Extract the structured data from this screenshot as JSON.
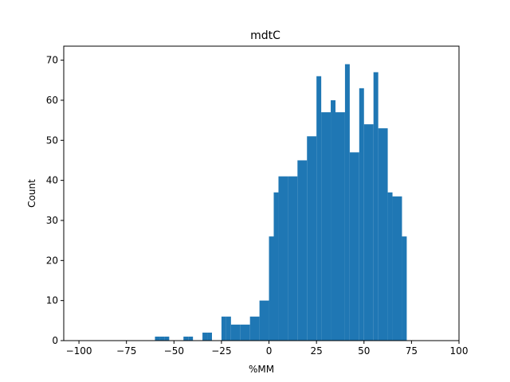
{
  "chart_data": {
    "type": "bar",
    "title": "mdtC",
    "xlabel": "%MM",
    "ylabel": "Count",
    "xlim": [
      -108,
      100
    ],
    "ylim": [
      0,
      73.5
    ],
    "xticks": [
      -100,
      -75,
      -50,
      -25,
      0,
      25,
      50,
      75,
      100
    ],
    "xtick_labels": [
      "−100",
      "−75",
      "−50",
      "−25",
      "0",
      "25",
      "50",
      "75",
      "100"
    ],
    "yticks": [
      0,
      10,
      20,
      30,
      40,
      50,
      60,
      70
    ],
    "grid": false,
    "bar_color": "#1f77b4",
    "bins": [
      {
        "x0": -60.0,
        "x1": -57.5,
        "count": 1
      },
      {
        "x0": -57.5,
        "x1": -55.0,
        "count": 1
      },
      {
        "x0": -55.0,
        "x1": -52.5,
        "count": 1
      },
      {
        "x0": -45.0,
        "x1": -42.5,
        "count": 1
      },
      {
        "x0": -42.5,
        "x1": -40.0,
        "count": 1
      },
      {
        "x0": -35.0,
        "x1": -32.5,
        "count": 2
      },
      {
        "x0": -32.5,
        "x1": -30.0,
        "count": 2
      },
      {
        "x0": -25.0,
        "x1": -22.5,
        "count": 6
      },
      {
        "x0": -22.5,
        "x1": -20.0,
        "count": 6
      },
      {
        "x0": -20.0,
        "x1": -15.0,
        "count": 4
      },
      {
        "x0": -15.0,
        "x1": -10.0,
        "count": 4
      },
      {
        "x0": -10.0,
        "x1": -5.0,
        "count": 6
      },
      {
        "x0": -5.0,
        "x1": 0.0,
        "count": 10
      },
      {
        "x0": 0.0,
        "x1": 2.5,
        "count": 26
      },
      {
        "x0": 2.5,
        "x1": 5.0,
        "count": 37
      },
      {
        "x0": 5.0,
        "x1": 10.0,
        "count": 41
      },
      {
        "x0": 10.0,
        "x1": 15.0,
        "count": 41
      },
      {
        "x0": 15.0,
        "x1": 20.0,
        "count": 45
      },
      {
        "x0": 20.0,
        "x1": 25.0,
        "count": 51
      },
      {
        "x0": 25.0,
        "x1": 27.5,
        "count": 66
      },
      {
        "x0": 27.5,
        "x1": 32.5,
        "count": 57
      },
      {
        "x0": 32.5,
        "x1": 35.0,
        "count": 60
      },
      {
        "x0": 35.0,
        "x1": 40.0,
        "count": 57
      },
      {
        "x0": 40.0,
        "x1": 42.5,
        "count": 69
      },
      {
        "x0": 42.5,
        "x1": 47.5,
        "count": 47
      },
      {
        "x0": 47.5,
        "x1": 50.0,
        "count": 63
      },
      {
        "x0": 50.0,
        "x1": 55.0,
        "count": 54
      },
      {
        "x0": 55.0,
        "x1": 57.5,
        "count": 67
      },
      {
        "x0": 57.5,
        "x1": 62.5,
        "count": 53
      },
      {
        "x0": 62.5,
        "x1": 65.0,
        "count": 37
      },
      {
        "x0": 65.0,
        "x1": 70.0,
        "count": 36
      },
      {
        "x0": 70.0,
        "x1": 72.5,
        "count": 26
      }
    ]
  }
}
